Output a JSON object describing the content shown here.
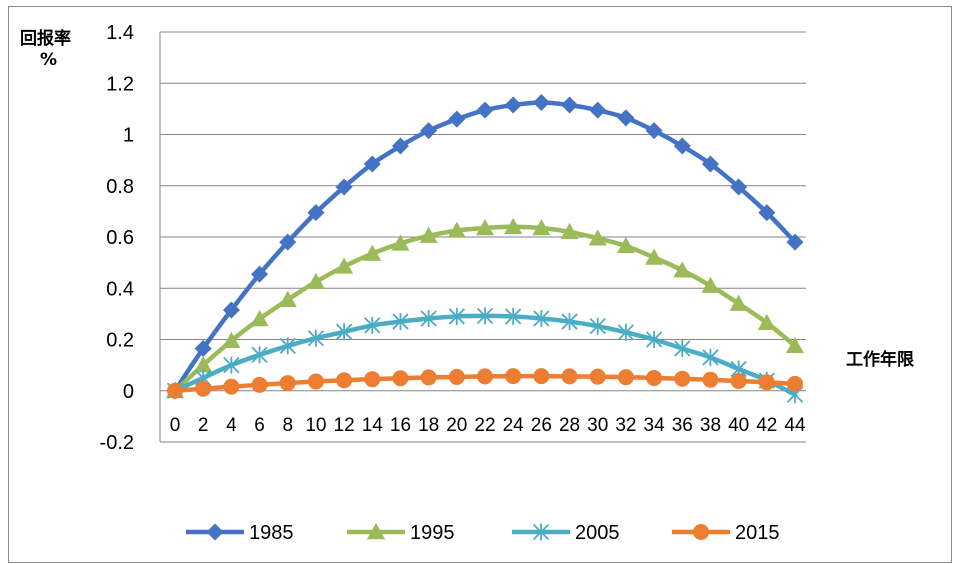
{
  "chart_data": {
    "type": "line",
    "xlabel": "工作年限",
    "ylabel_line1": "回报率",
    "ylabel_line2": "%",
    "x": [
      0,
      2,
      4,
      6,
      8,
      10,
      12,
      14,
      16,
      18,
      20,
      22,
      24,
      26,
      28,
      30,
      32,
      34,
      36,
      38,
      40,
      42,
      44
    ],
    "x_tick_labels": [
      "0",
      "2",
      "4",
      "6",
      "8",
      "10",
      "12",
      "14",
      "16",
      "18",
      "20",
      "22",
      "24",
      "26",
      "28",
      "30",
      "32",
      "34",
      "36",
      "38",
      "40",
      "42",
      "44"
    ],
    "y_tick_labels": [
      "1.4",
      "1.2",
      "1",
      "0.8",
      "0.6",
      "0.4",
      "0.2",
      "0",
      "-0.2"
    ],
    "ylim": [
      -0.2,
      1.4
    ],
    "grid": "horizontal",
    "legend_position": "bottom",
    "series": [
      {
        "name": "1985",
        "color": "#4472C4",
        "marker": "diamond",
        "values": [
          0,
          0.165,
          0.315,
          0.455,
          0.58,
          0.695,
          0.795,
          0.885,
          0.955,
          1.015,
          1.06,
          1.095,
          1.115,
          1.125,
          1.115,
          1.095,
          1.065,
          1.015,
          0.955,
          0.885,
          0.795,
          0.695,
          0.58
        ]
      },
      {
        "name": "1995",
        "color": "#9BBB59",
        "marker": "triangle",
        "values": [
          0,
          0.1,
          0.195,
          0.28,
          0.355,
          0.425,
          0.485,
          0.535,
          0.575,
          0.605,
          0.625,
          0.635,
          0.64,
          0.635,
          0.62,
          0.595,
          0.565,
          0.52,
          0.47,
          0.41,
          0.34,
          0.265,
          0.175
        ]
      },
      {
        "name": "2005",
        "color": "#4BACC6",
        "marker": "asterisk",
        "values": [
          0,
          0.05,
          0.1,
          0.14,
          0.175,
          0.205,
          0.23,
          0.255,
          0.27,
          0.282,
          0.29,
          0.292,
          0.29,
          0.282,
          0.27,
          0.252,
          0.228,
          0.2,
          0.165,
          0.13,
          0.085,
          0.04,
          -0.015
        ]
      },
      {
        "name": "2015",
        "color": "#ED7D31",
        "marker": "circle",
        "values": [
          0,
          0.008,
          0.016,
          0.023,
          0.03,
          0.036,
          0.041,
          0.045,
          0.049,
          0.052,
          0.054,
          0.056,
          0.057,
          0.057,
          0.056,
          0.055,
          0.053,
          0.05,
          0.047,
          0.043,
          0.038,
          0.033,
          0.027
        ]
      }
    ]
  }
}
